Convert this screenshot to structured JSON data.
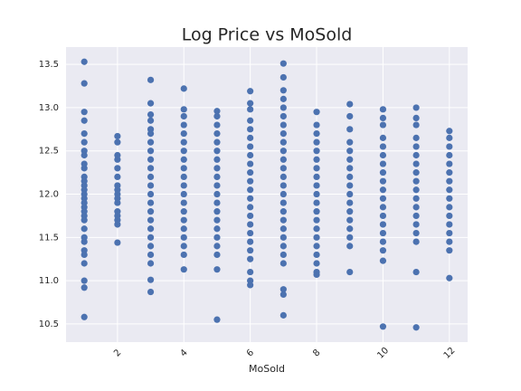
{
  "chart_data": {
    "type": "scatter",
    "title": "Log Price vs MoSold",
    "xlabel": "MoSold",
    "color": "#4c72b0",
    "grid": true,
    "xlim": [
      0.45,
      12.55
    ],
    "xticks": [
      2,
      4,
      6,
      8,
      10,
      12
    ],
    "ylim": [
      10.29,
      13.7
    ],
    "yticks": [
      10.5,
      {
        "value": 11,
        "label": "11.0"
      },
      11.5,
      {
        "value": 12,
        "label": "12.0"
      },
      12.5,
      {
        "value": 13,
        "label": "13.0"
      },
      13.5
    ],
    "x": [
      1,
      1,
      1,
      1,
      1,
      1,
      1,
      1,
      1,
      1,
      1,
      1,
      1,
      1,
      1,
      1,
      1,
      1,
      1,
      1,
      1,
      1,
      1,
      1,
      1,
      1,
      1,
      1,
      1,
      1,
      2,
      2,
      2,
      2,
      2,
      2,
      2,
      2,
      2,
      2,
      2,
      2,
      2,
      2,
      2,
      2,
      3,
      3,
      3,
      3,
      3,
      3,
      3,
      3,
      3,
      3,
      3,
      3,
      3,
      3,
      3,
      3,
      3,
      3,
      3,
      3,
      3,
      3,
      3,
      4,
      4,
      4,
      4,
      4,
      4,
      4,
      4,
      4,
      4,
      4,
      4,
      4,
      4,
      4,
      4,
      4,
      4,
      4,
      4,
      5,
      5,
      5,
      5,
      5,
      5,
      5,
      5,
      5,
      5,
      5,
      5,
      5,
      5,
      5,
      5,
      5,
      5,
      5,
      5,
      6,
      6,
      6,
      6,
      6,
      6,
      6,
      6,
      6,
      6,
      6,
      6,
      6,
      6,
      6,
      6,
      6,
      6,
      6,
      6,
      6,
      6,
      6,
      7,
      7,
      7,
      7,
      7,
      7,
      7,
      7,
      7,
      7,
      7,
      7,
      7,
      7,
      7,
      7,
      7,
      7,
      7,
      7,
      7,
      7,
      7,
      7,
      7,
      7,
      8,
      8,
      8,
      8,
      8,
      8,
      8,
      8,
      8,
      8,
      8,
      8,
      8,
      8,
      8,
      8,
      8,
      8,
      8,
      8,
      9,
      9,
      9,
      9,
      9,
      9,
      9,
      9,
      9,
      9,
      9,
      9,
      9,
      9,
      9,
      9,
      9,
      10,
      10,
      10,
      10,
      10,
      10,
      10,
      10,
      10,
      10,
      10,
      10,
      10,
      10,
      10,
      10,
      10,
      10,
      10,
      11,
      11,
      11,
      11,
      11,
      11,
      11,
      11,
      11,
      11,
      11,
      11,
      11,
      11,
      11,
      11,
      11,
      11,
      12,
      12,
      12,
      12,
      12,
      12,
      12,
      12,
      12,
      12,
      12,
      12,
      12,
      12,
      12,
      12
    ],
    "y": [
      13.53,
      13.28,
      12.95,
      12.85,
      12.7,
      12.6,
      12.5,
      12.45,
      12.35,
      12.3,
      12.2,
      12.15,
      12.1,
      12.05,
      12.0,
      11.95,
      11.9,
      11.85,
      11.8,
      11.75,
      11.7,
      11.6,
      11.5,
      11.45,
      11.35,
      11.3,
      11.2,
      11.0,
      10.92,
      10.58,
      12.67,
      12.6,
      12.45,
      12.4,
      12.3,
      12.2,
      12.1,
      12.05,
      12.0,
      11.95,
      11.9,
      11.8,
      11.75,
      11.7,
      11.65,
      11.44,
      13.32,
      13.05,
      12.92,
      12.85,
      12.75,
      12.7,
      12.6,
      12.5,
      12.4,
      12.3,
      12.2,
      12.1,
      12.0,
      11.9,
      11.8,
      11.7,
      11.6,
      11.5,
      11.4,
      11.3,
      11.2,
      11.01,
      10.87,
      13.22,
      12.98,
      12.9,
      12.8,
      12.7,
      12.6,
      12.5,
      12.4,
      12.3,
      12.2,
      12.1,
      12.0,
      11.9,
      11.8,
      11.7,
      11.6,
      11.5,
      11.4,
      11.3,
      11.13,
      12.96,
      12.9,
      12.8,
      12.7,
      12.6,
      12.5,
      12.4,
      12.3,
      12.2,
      12.1,
      12.0,
      11.9,
      11.8,
      11.7,
      11.6,
      11.5,
      11.4,
      11.3,
      11.13,
      10.55,
      13.19,
      13.05,
      12.98,
      12.85,
      12.75,
      12.65,
      12.55,
      12.45,
      12.35,
      12.25,
      12.15,
      12.05,
      11.95,
      11.85,
      11.75,
      11.65,
      11.55,
      11.45,
      11.35,
      11.25,
      11.1,
      11.0,
      10.95,
      13.51,
      13.35,
      13.2,
      13.1,
      13.0,
      12.9,
      12.8,
      12.7,
      12.6,
      12.5,
      12.4,
      12.3,
      12.2,
      12.1,
      12.0,
      11.9,
      11.8,
      11.7,
      11.6,
      11.5,
      11.4,
      11.3,
      11.2,
      10.9,
      10.84,
      10.6,
      12.95,
      12.8,
      12.7,
      12.6,
      12.5,
      12.4,
      12.3,
      12.2,
      12.1,
      12.0,
      11.9,
      11.8,
      11.7,
      11.6,
      11.5,
      11.4,
      11.3,
      11.2,
      11.1,
      11.07,
      13.04,
      12.9,
      12.75,
      12.6,
      12.5,
      12.4,
      12.3,
      12.2,
      12.1,
      12.0,
      11.9,
      11.8,
      11.7,
      11.6,
      11.5,
      11.4,
      11.1,
      12.98,
      12.88,
      12.8,
      12.65,
      12.55,
      12.45,
      12.35,
      12.25,
      12.15,
      12.05,
      11.95,
      11.85,
      11.75,
      11.65,
      11.55,
      11.45,
      11.35,
      11.23,
      10.47,
      13.0,
      12.88,
      12.8,
      12.65,
      12.55,
      12.45,
      12.35,
      12.25,
      12.15,
      12.05,
      11.95,
      11.85,
      11.75,
      11.65,
      11.55,
      11.45,
      11.1,
      10.46,
      12.73,
      12.65,
      12.55,
      12.45,
      12.35,
      12.25,
      12.15,
      12.05,
      11.95,
      11.85,
      11.75,
      11.65,
      11.55,
      11.45,
      11.35,
      11.03
    ]
  }
}
